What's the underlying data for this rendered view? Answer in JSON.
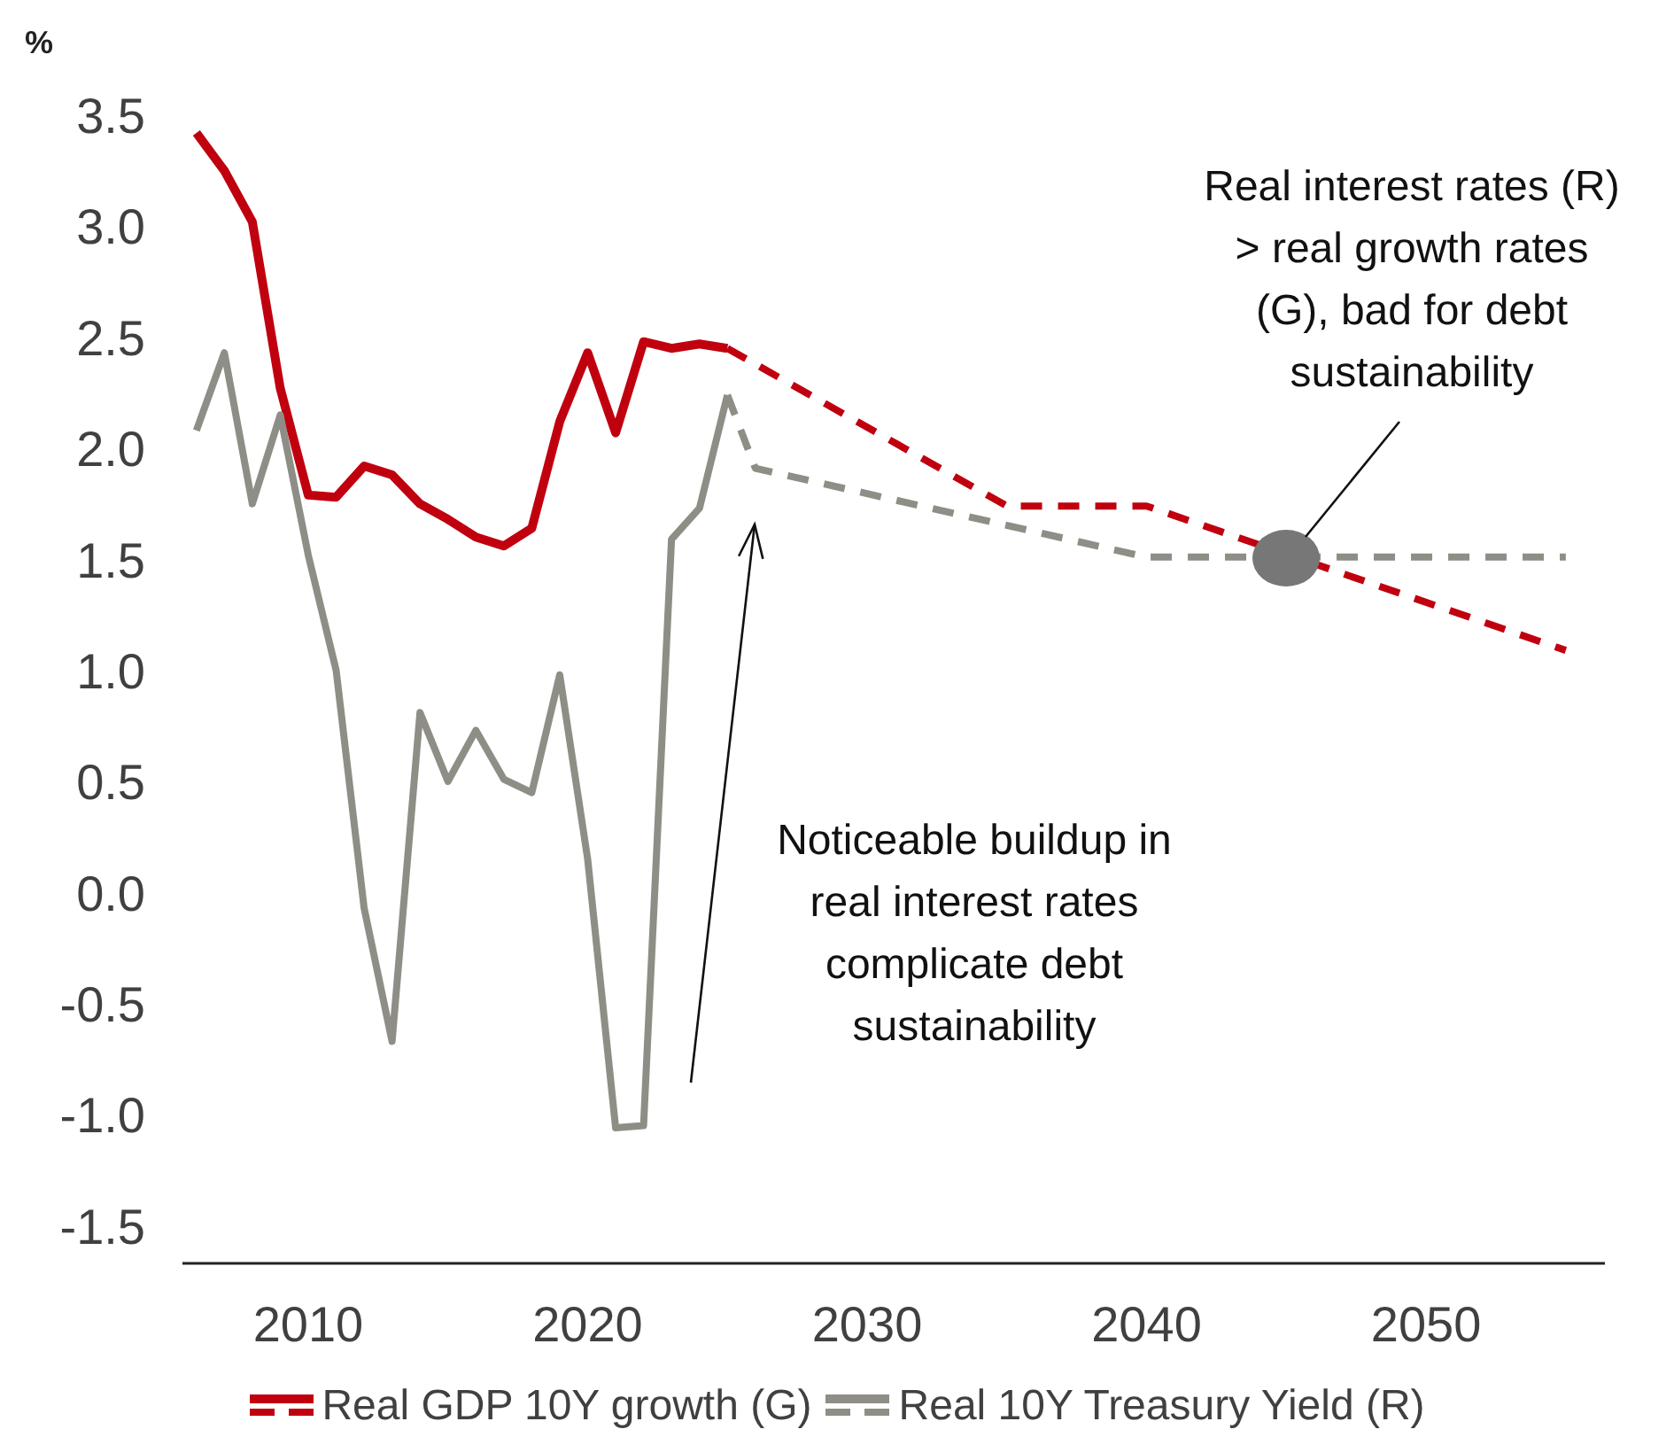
{
  "chart_data": {
    "type": "line",
    "ylabel": "%",
    "xlim": [
      2005.5,
      2056.4
    ],
    "xticks": [
      2010,
      2020,
      2030,
      2040,
      2050
    ],
    "ylim": [
      -1.67,
      3.5
    ],
    "yticks": [
      -1.5,
      {
        "value": -1,
        "label": "-1.0"
      },
      -0.5,
      {
        "value": 0,
        "label": "0.0"
      },
      0.5,
      {
        "value": 1,
        "label": "1.0"
      },
      1.5,
      {
        "value": 2,
        "label": "2.0"
      },
      2.5,
      {
        "value": 3,
        "label": "3.0"
      },
      3.5
    ],
    "grid": false,
    "legend": "bottom",
    "marker": "none",
    "series": [
      {
        "name": "Real GDP 10Y growth (G)",
        "color": "#c0000f",
        "line_style": "solid",
        "x": [
          2006,
          2007,
          2008,
          2009,
          2010,
          2011,
          2012,
          2013,
          2014,
          2015,
          2016,
          2017,
          2018,
          2019,
          2020,
          2021,
          2022,
          2023,
          2024,
          2025
        ],
        "values": [
          3.42,
          3.25,
          3.02,
          2.27,
          1.79,
          1.78,
          1.92,
          1.88,
          1.75,
          1.68,
          1.6,
          1.56,
          1.64,
          2.12,
          2.43,
          2.07,
          2.48,
          2.45,
          2.47,
          2.45
        ]
      },
      {
        "color": "#c0000f",
        "line_style": "dashed",
        "x": [
          2025,
          2035,
          2040,
          2055
        ],
        "values": [
          2.45,
          1.74,
          1.74,
          1.09
        ]
      },
      {
        "name": "Real 10Y Treasury Yield (R)",
        "color": "#8f8e86",
        "line_style": "solid",
        "x": [
          2006,
          2007,
          2008,
          2009,
          2010,
          2011,
          2012,
          2013,
          2014,
          2015,
          2016,
          2017,
          2018,
          2019,
          2020,
          2021,
          2022,
          2023,
          2024,
          2025
        ],
        "values": [
          2.08,
          2.43,
          1.75,
          2.15,
          1.52,
          1.0,
          -0.07,
          -0.67,
          0.81,
          0.5,
          0.73,
          0.51,
          0.45,
          0.98,
          0.15,
          -1.06,
          -1.05,
          1.59,
          1.73,
          2.24
        ]
      },
      {
        "color": "#8f8e86",
        "line_style": "dashed",
        "x": [
          2025,
          2026,
          2040,
          2055
        ],
        "values": [
          2.24,
          1.91,
          1.51,
          1.51
        ]
      }
    ],
    "annotations": [
      "Real interest rates (R)\n> real growth rates\n(G), bad for debt\nsustainability",
      "Noticeable buildup in\nreal interest rates\ncomplicate debt\nsustainability"
    ]
  }
}
